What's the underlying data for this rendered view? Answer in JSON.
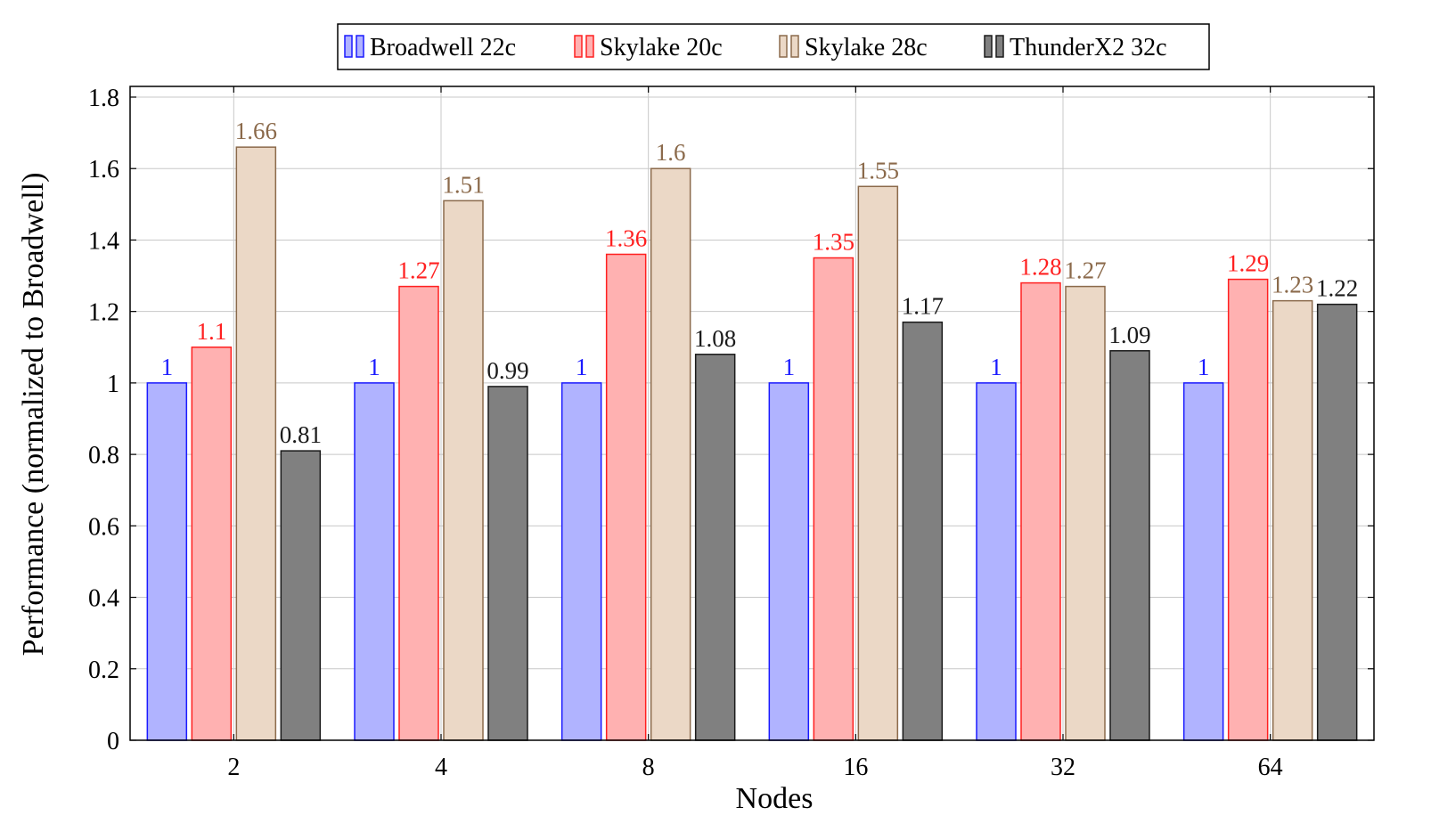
{
  "chart_data": {
    "type": "bar",
    "title": "",
    "xlabel": "Nodes",
    "ylabel": "Performance (normalized to Broadwell)",
    "categories": [
      "2",
      "4",
      "8",
      "16",
      "32",
      "64"
    ],
    "ylim": [
      0,
      1.8
    ],
    "yticks": [
      "0",
      "0.2",
      "0.4",
      "0.6",
      "0.8",
      "1",
      "1.2",
      "1.4",
      "1.6",
      "1.8"
    ],
    "grid": true,
    "legend_position": "top-center",
    "series": [
      {
        "name": "Broadwell 22c",
        "values": [
          1,
          1,
          1,
          1,
          1,
          1
        ],
        "labels": [
          "1",
          "1",
          "1",
          "1",
          "1",
          "1"
        ],
        "fill": "#b0b3ff",
        "stroke": "#1a1aff",
        "label_color": "#1a1aff"
      },
      {
        "name": "Skylake 20c",
        "values": [
          1.1,
          1.27,
          1.36,
          1.35,
          1.28,
          1.29
        ],
        "labels": [
          "1.1",
          "1.27",
          "1.36",
          "1.35",
          "1.28",
          "1.29"
        ],
        "fill": "#ffb1b1",
        "stroke": "#ff2020",
        "label_color": "#ff2020"
      },
      {
        "name": "Skylake 28c",
        "values": [
          1.66,
          1.51,
          1.6,
          1.55,
          1.27,
          1.23
        ],
        "labels": [
          "1.66",
          "1.51",
          "1.6",
          "1.55",
          "1.27",
          "1.23"
        ],
        "fill": "#ebd8c6",
        "stroke": "#8b6a4b",
        "label_color": "#8b6a4b"
      },
      {
        "name": "ThunderX2 32c",
        "values": [
          0.81,
          0.99,
          1.08,
          1.17,
          1.09,
          1.22
        ],
        "labels": [
          "0.81",
          "0.99",
          "1.08",
          "1.17",
          "1.09",
          "1.22"
        ],
        "fill": "#808080",
        "stroke": "#1a1a1a",
        "label_color": "#1a1a1a"
      }
    ]
  }
}
